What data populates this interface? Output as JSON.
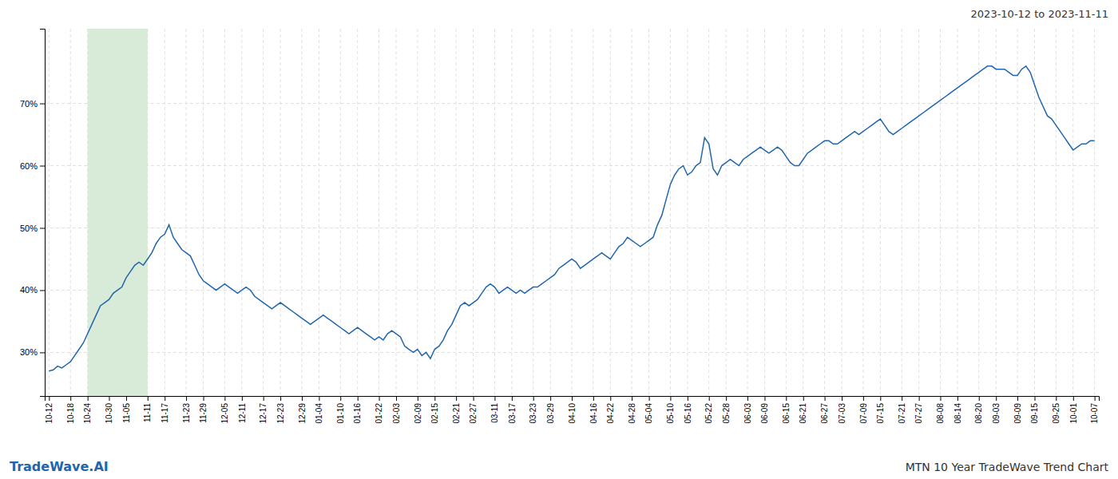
{
  "chart_data": {
    "type": "line",
    "title": "2023-10-12 to 2023-11-11",
    "annotations": [
      {
        "text": "TradeWave.AI",
        "color": "#2166ac"
      },
      {
        "text": "MTN 10 Year TradeWave Trend Chart"
      }
    ],
    "color": "#2166ac",
    "grid": true,
    "ylim": [
      23,
      82
    ],
    "yticks": [
      {
        "value": 30,
        "label": "30%"
      },
      {
        "value": 40,
        "label": "40%"
      },
      {
        "value": 50,
        "label": "50%"
      },
      {
        "value": 60,
        "label": "60%"
      },
      {
        "value": 70,
        "label": "70%"
      }
    ],
    "highlight": {
      "start": "10-24",
      "end": "11-11",
      "color": "#d8ead8"
    },
    "categories": [
      "10-12",
      null,
      null,
      null,
      null,
      "10-18",
      null,
      null,
      null,
      "10-24",
      null,
      null,
      null,
      null,
      "10-30",
      null,
      null,
      null,
      "11-05",
      null,
      null,
      null,
      null,
      "11-11",
      null,
      null,
      null,
      "11-17",
      null,
      null,
      null,
      null,
      "11-23",
      null,
      null,
      null,
      "11-29",
      null,
      null,
      null,
      null,
      "12-05",
      null,
      null,
      null,
      "12-11",
      null,
      null,
      null,
      null,
      "12-17",
      null,
      null,
      null,
      "12-23",
      null,
      null,
      null,
      null,
      "12-29",
      null,
      null,
      null,
      "01-04",
      null,
      null,
      null,
      null,
      "01-10",
      null,
      null,
      null,
      "01-16",
      null,
      null,
      null,
      null,
      "01-22",
      null,
      null,
      null,
      "02-03",
      null,
      null,
      null,
      null,
      "02-09",
      null,
      null,
      null,
      "02-15",
      null,
      null,
      null,
      null,
      "02-21",
      null,
      null,
      null,
      "02-27",
      null,
      null,
      null,
      null,
      "03-11",
      null,
      null,
      null,
      "03-17",
      null,
      null,
      null,
      null,
      "03-23",
      null,
      null,
      null,
      "03-29",
      null,
      null,
      null,
      null,
      "04-10",
      null,
      null,
      null,
      null,
      "04-16",
      null,
      null,
      null,
      "04-22",
      null,
      null,
      null,
      null,
      "04-28",
      null,
      null,
      null,
      "05-04",
      null,
      null,
      null,
      null,
      "05-10",
      null,
      null,
      null,
      "05-16",
      null,
      null,
      null,
      null,
      "05-22",
      null,
      null,
      null,
      "05-28",
      null,
      null,
      null,
      null,
      "06-03",
      null,
      null,
      null,
      "06-09",
      null,
      null,
      null,
      null,
      "06-15",
      null,
      null,
      null,
      "06-21",
      null,
      null,
      null,
      null,
      "06-27",
      null,
      null,
      null,
      "07-03",
      null,
      null,
      null,
      null,
      "07-09",
      null,
      null,
      null,
      "07-15",
      null,
      null,
      null,
      null,
      "07-21",
      null,
      null,
      null,
      "07-27",
      null,
      null,
      null,
      null,
      "08-08",
      null,
      null,
      null,
      "08-14",
      null,
      null,
      null,
      null,
      "08-20",
      null,
      null,
      null,
      "09-03",
      null,
      null,
      null,
      null,
      "09-09",
      null,
      null,
      null,
      "09-15",
      null,
      null,
      null,
      null,
      "09-25",
      null,
      null,
      null,
      "10-01",
      null,
      null,
      null,
      null,
      "10-07"
    ],
    "values": [
      27.0,
      27.2,
      27.8,
      27.5,
      28.0,
      28.5,
      29.5,
      30.5,
      31.5,
      33.0,
      34.5,
      36.0,
      37.5,
      38.0,
      38.5,
      39.5,
      40.0,
      40.5,
      42.0,
      43.0,
      44.0,
      44.5,
      44.0,
      45.0,
      46.0,
      47.5,
      48.5,
      49.0,
      50.5,
      48.5,
      47.5,
      46.5,
      46.0,
      45.5,
      44.0,
      42.5,
      41.5,
      41.0,
      40.5,
      40.0,
      40.5,
      41.0,
      40.5,
      40.0,
      39.5,
      40.0,
      40.5,
      40.0,
      39.0,
      38.5,
      38.0,
      37.5,
      37.0,
      37.5,
      38.0,
      37.5,
      37.0,
      36.5,
      36.0,
      35.5,
      35.0,
      34.5,
      35.0,
      35.5,
      36.0,
      35.5,
      35.0,
      34.5,
      34.0,
      33.5,
      33.0,
      33.5,
      34.0,
      33.5,
      33.0,
      32.5,
      32.0,
      32.5,
      32.0,
      33.0,
      33.5,
      33.0,
      32.5,
      31.0,
      30.5,
      30.0,
      30.5,
      29.5,
      30.0,
      29.0,
      30.5,
      31.0,
      32.0,
      33.5,
      34.5,
      36.0,
      37.5,
      38.0,
      37.5,
      38.0,
      38.5,
      39.5,
      40.5,
      41.0,
      40.5,
      39.5,
      40.0,
      40.5,
      40.0,
      39.5,
      40.0,
      39.5,
      40.0,
      40.5,
      40.5,
      41.0,
      41.5,
      42.0,
      42.5,
      43.5,
      44.0,
      44.5,
      45.0,
      44.5,
      43.5,
      44.0,
      44.5,
      45.0,
      45.5,
      46.0,
      45.5,
      45.0,
      46.0,
      47.0,
      47.5,
      48.5,
      48.0,
      47.5,
      47.0,
      47.5,
      48.0,
      48.5,
      50.5,
      52.0,
      54.5,
      57.0,
      58.5,
      59.5,
      60.0,
      58.5,
      59.0,
      60.0,
      60.5,
      64.5,
      63.5,
      59.5,
      58.5,
      60.0,
      60.5,
      61.0,
      60.5,
      60.0,
      61.0,
      61.5,
      62.0,
      62.5,
      63.0,
      62.5,
      62.0,
      62.5,
      63.0,
      62.5,
      61.5,
      60.5,
      60.0,
      60.0,
      61.0,
      62.0,
      62.5,
      63.0,
      63.5,
      64.0,
      64.0,
      63.5,
      63.5,
      64.0,
      64.5,
      65.0,
      65.5,
      65.0,
      65.5,
      66.0,
      66.5,
      67.0,
      67.5,
      66.5,
      65.5,
      65.0,
      65.5,
      66.0,
      66.5,
      67.0,
      67.5,
      68.0,
      68.5,
      69.0,
      69.5,
      70.0,
      70.5,
      71.0,
      71.5,
      72.0,
      72.5,
      73.0,
      73.5,
      74.0,
      74.5,
      75.0,
      75.5,
      76.0,
      76.0,
      75.5,
      75.5,
      75.5,
      75.0,
      74.5,
      74.5,
      75.5,
      76.0,
      75.0,
      73.0,
      71.0,
      69.5,
      68.0,
      67.5,
      66.5,
      65.5,
      64.5,
      63.5,
      62.5,
      63.0,
      63.5,
      63.5,
      64.0,
      64.0
    ]
  }
}
